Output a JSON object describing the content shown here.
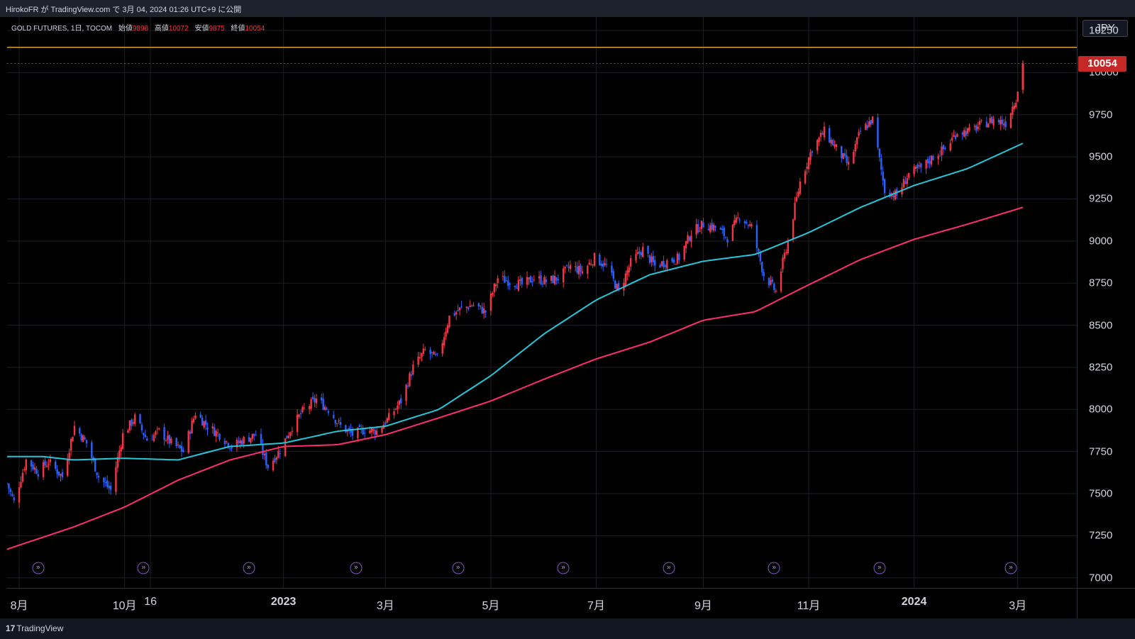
{
  "header": {
    "caption": "HirokoFR が TradingView.com で 3月 04, 2024 01:26 UTC+9 に公開"
  },
  "legend": {
    "symbol": "GOLD FUTURES, 1日, TOCOM",
    "open_label": "始値",
    "open": "9898",
    "high_label": "高値",
    "high": "10072",
    "low_label": "安値",
    "low": "9875",
    "close_label": "終値",
    "close": "10054"
  },
  "price_axis": {
    "currency": "JPY",
    "ticks": [
      "10250",
      "10000",
      "9750",
      "9500",
      "9250",
      "9000",
      "8750",
      "8500",
      "8250",
      "8000",
      "7750",
      "7500",
      "7250",
      "7000"
    ],
    "last_price_label": "10054"
  },
  "time_axis": {
    "ticks": [
      {
        "label": "8月",
        "bold": false
      },
      {
        "label": "10月",
        "bold": false
      },
      {
        "label": "16",
        "bold": false
      },
      {
        "label": "2023",
        "bold": true
      },
      {
        "label": "3月",
        "bold": false
      },
      {
        "label": "5月",
        "bold": false
      },
      {
        "label": "7月",
        "bold": false
      },
      {
        "label": "9月",
        "bold": false
      },
      {
        "label": "11月",
        "bold": false
      },
      {
        "label": "2024",
        "bold": true
      },
      {
        "label": "3月",
        "bold": false
      }
    ]
  },
  "footer": {
    "brand": "TradingView",
    "logo_mark": "17"
  },
  "colors": {
    "up": "#f23645",
    "down": "#2962ff",
    "ma_fast": "#26c6da",
    "ma_slow": "#ff2e6e",
    "hline": "#d4a437",
    "background": "#000000"
  },
  "chart_data": {
    "type": "candlestick",
    "title": "GOLD FUTURES, 1日, TOCOM",
    "currency": "JPY",
    "ylim": [
      6940,
      10330
    ],
    "x_range": [
      "2022-07-25",
      "2024-03-04"
    ],
    "grid": true,
    "horizontal_line": 10150,
    "last_price": 10054,
    "events": [
      "2022-08-12",
      "2022-10-12",
      "2022-12-12",
      "2023-02-12",
      "2023-04-12",
      "2023-06-12",
      "2023-08-12",
      "2023-10-12",
      "2023-12-12",
      "2024-02-26"
    ],
    "price_path": [
      [
        "2022-07-25",
        7560
      ],
      [
        "2022-07-29",
        7450
      ],
      [
        "2022-08-05",
        7700
      ],
      [
        "2022-08-12",
        7630
      ],
      [
        "2022-08-18",
        7690
      ],
      [
        "2022-08-26",
        7600
      ],
      [
        "2022-09-02",
        7900
      ],
      [
        "2022-09-09",
        7800
      ],
      [
        "2022-09-16",
        7600
      ],
      [
        "2022-09-23",
        7520
      ],
      [
        "2022-09-30",
        7850
      ],
      [
        "2022-10-07",
        7950
      ],
      [
        "2022-10-14",
        7820
      ],
      [
        "2022-10-21",
        7870
      ],
      [
        "2022-10-28",
        7800
      ],
      [
        "2022-11-04",
        7750
      ],
      [
        "2022-11-11",
        7980
      ],
      [
        "2022-11-18",
        7900
      ],
      [
        "2022-11-25",
        7850
      ],
      [
        "2022-12-02",
        7780
      ],
      [
        "2022-12-09",
        7820
      ],
      [
        "2022-12-16",
        7850
      ],
      [
        "2022-12-23",
        7660
      ],
      [
        "2022-12-30",
        7760
      ],
      [
        "2023-01-06",
        7900
      ],
      [
        "2023-01-13",
        8000
      ],
      [
        "2023-01-20",
        8060
      ],
      [
        "2023-01-27",
        8000
      ],
      [
        "2023-02-03",
        7900
      ],
      [
        "2023-02-10",
        7850
      ],
      [
        "2023-02-17",
        7880
      ],
      [
        "2023-02-24",
        7870
      ],
      [
        "2023-03-03",
        7950
      ],
      [
        "2023-03-10",
        8050
      ],
      [
        "2023-03-17",
        8250
      ],
      [
        "2023-03-24",
        8350
      ],
      [
        "2023-03-31",
        8300
      ],
      [
        "2023-04-07",
        8550
      ],
      [
        "2023-04-14",
        8600
      ],
      [
        "2023-04-21",
        8620
      ],
      [
        "2023-04-28",
        8580
      ],
      [
        "2023-05-05",
        8780
      ],
      [
        "2023-05-12",
        8760
      ],
      [
        "2023-05-19",
        8740
      ],
      [
        "2023-05-26",
        8780
      ],
      [
        "2023-06-02",
        8760
      ],
      [
        "2023-06-09",
        8780
      ],
      [
        "2023-06-16",
        8850
      ],
      [
        "2023-06-23",
        8820
      ],
      [
        "2023-06-30",
        8900
      ],
      [
        "2023-07-07",
        8850
      ],
      [
        "2023-07-14",
        8700
      ],
      [
        "2023-07-21",
        8870
      ],
      [
        "2023-07-28",
        8950
      ],
      [
        "2023-08-04",
        8850
      ],
      [
        "2023-08-11",
        8880
      ],
      [
        "2023-08-18",
        8900
      ],
      [
        "2023-08-25",
        9050
      ],
      [
        "2023-09-01",
        9100
      ],
      [
        "2023-09-08",
        9080
      ],
      [
        "2023-09-15",
        9020
      ],
      [
        "2023-09-22",
        9150
      ],
      [
        "2023-09-29",
        9080
      ],
      [
        "2023-10-06",
        8800
      ],
      [
        "2023-10-13",
        8700
      ],
      [
        "2023-10-20",
        9000
      ],
      [
        "2023-10-27",
        9350
      ],
      [
        "2023-11-03",
        9550
      ],
      [
        "2023-11-10",
        9650
      ],
      [
        "2023-11-17",
        9550
      ],
      [
        "2023-11-24",
        9450
      ],
      [
        "2023-12-01",
        9650
      ],
      [
        "2023-12-08",
        9720
      ],
      [
        "2023-12-15",
        9300
      ],
      [
        "2023-12-22",
        9270
      ],
      [
        "2023-12-29",
        9400
      ],
      [
        "2024-01-05",
        9430
      ],
      [
        "2024-01-12",
        9500
      ],
      [
        "2024-01-19",
        9550
      ],
      [
        "2024-01-26",
        9650
      ],
      [
        "2024-02-02",
        9650
      ],
      [
        "2024-02-09",
        9690
      ],
      [
        "2024-02-16",
        9720
      ],
      [
        "2024-02-23",
        9700
      ],
      [
        "2024-02-29",
        9850
      ],
      [
        "2024-03-04",
        10054
      ]
    ],
    "ma_fast": [
      [
        "2022-07-25",
        7720
      ],
      [
        "2022-08-15",
        7720
      ],
      [
        "2022-09-01",
        7700
      ],
      [
        "2022-10-01",
        7710
      ],
      [
        "2022-11-01",
        7700
      ],
      [
        "2022-12-01",
        7780
      ],
      [
        "2023-01-01",
        7800
      ],
      [
        "2023-02-01",
        7870
      ],
      [
        "2023-03-01",
        7900
      ],
      [
        "2023-04-01",
        8000
      ],
      [
        "2023-05-01",
        8200
      ],
      [
        "2023-06-01",
        8450
      ],
      [
        "2023-07-01",
        8650
      ],
      [
        "2023-08-01",
        8800
      ],
      [
        "2023-09-01",
        8880
      ],
      [
        "2023-10-01",
        8920
      ],
      [
        "2023-11-01",
        9050
      ],
      [
        "2023-12-01",
        9200
      ],
      [
        "2024-01-01",
        9330
      ],
      [
        "2024-02-01",
        9430
      ],
      [
        "2024-03-04",
        9580
      ]
    ],
    "ma_slow": [
      [
        "2022-07-25",
        7170
      ],
      [
        "2022-09-01",
        7300
      ],
      [
        "2022-10-01",
        7420
      ],
      [
        "2022-11-01",
        7580
      ],
      [
        "2022-12-01",
        7700
      ],
      [
        "2023-01-01",
        7780
      ],
      [
        "2023-02-01",
        7790
      ],
      [
        "2023-03-01",
        7850
      ],
      [
        "2023-04-01",
        7950
      ],
      [
        "2023-05-01",
        8050
      ],
      [
        "2023-06-01",
        8180
      ],
      [
        "2023-07-01",
        8300
      ],
      [
        "2023-08-01",
        8400
      ],
      [
        "2023-09-01",
        8530
      ],
      [
        "2023-10-01",
        8580
      ],
      [
        "2023-11-01",
        8740
      ],
      [
        "2023-12-01",
        8890
      ],
      [
        "2024-01-01",
        9010
      ],
      [
        "2024-02-01",
        9100
      ],
      [
        "2024-03-04",
        9200
      ]
    ]
  }
}
